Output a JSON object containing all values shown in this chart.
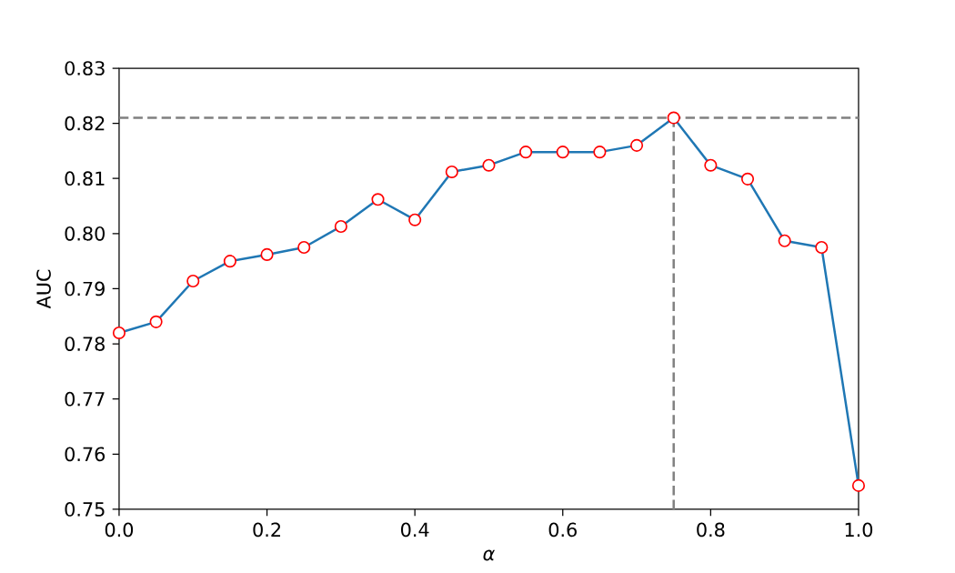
{
  "chart_data": {
    "type": "line",
    "xlabel": "α",
    "ylabel": "AUC",
    "x": [
      0.0,
      0.05,
      0.1,
      0.15,
      0.2,
      0.25,
      0.3,
      0.35,
      0.4,
      0.45,
      0.5,
      0.55,
      0.6,
      0.65,
      0.7,
      0.75,
      0.8,
      0.85,
      0.9,
      0.95,
      1.0
    ],
    "series": [
      {
        "color": "#1f77b4",
        "values": [
          0.782,
          0.784,
          0.7914,
          0.795,
          0.7962,
          0.7975,
          0.8013,
          0.8062,
          0.8025,
          0.8112,
          0.8124,
          0.8148,
          0.8148,
          0.8148,
          0.816,
          0.821,
          0.8124,
          0.8099,
          0.7987,
          0.7975,
          0.7543
        ]
      }
    ],
    "marker": "circle",
    "line_style": "solid",
    "grid": false,
    "xlim": [
      0,
      1
    ],
    "ylim": [
      0.75,
      0.83
    ],
    "xticks": [
      {
        "value": 0,
        "label": "0.0"
      },
      {
        "value": 0.2,
        "label": "0.2"
      },
      {
        "value": 0.4,
        "label": "0.4"
      },
      {
        "value": 0.6,
        "label": "0.6"
      },
      {
        "value": 0.8,
        "label": "0.8"
      },
      {
        "value": 1,
        "label": "1.0"
      }
    ],
    "yticks": [
      {
        "value": 0.75,
        "label": "0.75"
      },
      {
        "value": 0.76,
        "label": "0.76"
      },
      {
        "value": 0.77,
        "label": "0.77"
      },
      {
        "value": 0.78,
        "label": "0.78"
      },
      {
        "value": 0.79,
        "label": "0.79"
      },
      {
        "value": 0.8,
        "label": "0.80"
      },
      {
        "value": 0.81,
        "label": "0.81"
      },
      {
        "value": 0.82,
        "label": "0.82"
      },
      {
        "value": 0.83,
        "label": "0.83"
      }
    ],
    "ref_lines": [
      {
        "axis": "y",
        "value": 0.821,
        "color": "#808080",
        "line_style": "dashed"
      },
      {
        "axis": "x",
        "value": 0.75,
        "color": "#808080",
        "line_style": "dashed"
      }
    ]
  }
}
